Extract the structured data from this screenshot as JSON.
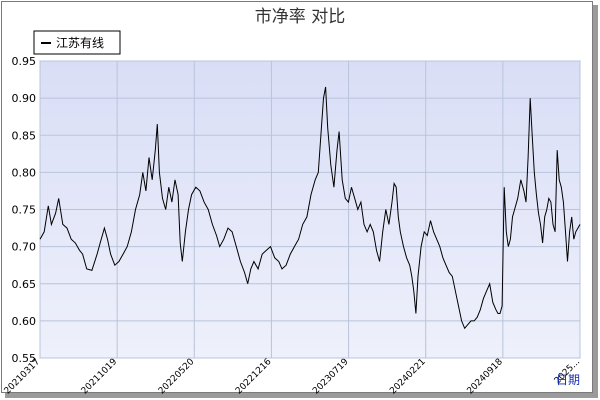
{
  "chart_data": {
    "type": "line",
    "title": "市净率  对比",
    "series": [
      {
        "name": "江苏有线",
        "color": "#000000"
      }
    ],
    "xlabel": "日期",
    "ylim": [
      0.55,
      0.95
    ],
    "yticks": [
      "0.55",
      "0.60",
      "0.65",
      "0.70",
      "0.75",
      "0.80",
      "0.85",
      "0.90",
      "0.95"
    ],
    "xticks": [
      "20210317",
      "20211019",
      "20220520",
      "20221216",
      "20230719",
      "20240221",
      "20240918",
      "2025..."
    ],
    "grid": true,
    "legend": "top-left",
    "background": "#dfe4f8",
    "points": [
      [
        0,
        0.71
      ],
      [
        4,
        0.72
      ],
      [
        8,
        0.755
      ],
      [
        11,
        0.73
      ],
      [
        15,
        0.745
      ],
      [
        18,
        0.765
      ],
      [
        22,
        0.73
      ],
      [
        26,
        0.725
      ],
      [
        30,
        0.71
      ],
      [
        34,
        0.705
      ],
      [
        38,
        0.695
      ],
      [
        41,
        0.69
      ],
      [
        45,
        0.67
      ],
      [
        50,
        0.668
      ],
      [
        55,
        0.69
      ],
      [
        58,
        0.705
      ],
      [
        62,
        0.725
      ],
      [
        65,
        0.71
      ],
      [
        68,
        0.69
      ],
      [
        72,
        0.675
      ],
      [
        76,
        0.68
      ],
      [
        80,
        0.69
      ],
      [
        84,
        0.7
      ],
      [
        88,
        0.72
      ],
      [
        92,
        0.75
      ],
      [
        96,
        0.77
      ],
      [
        99,
        0.8
      ],
      [
        102,
        0.775
      ],
      [
        105,
        0.82
      ],
      [
        108,
        0.79
      ],
      [
        111,
        0.83
      ],
      [
        113,
        0.865
      ],
      [
        115,
        0.8
      ],
      [
        118,
        0.765
      ],
      [
        121,
        0.75
      ],
      [
        124,
        0.78
      ],
      [
        127,
        0.76
      ],
      [
        130,
        0.79
      ],
      [
        133,
        0.77
      ],
      [
        135,
        0.705
      ],
      [
        137,
        0.68
      ],
      [
        140,
        0.72
      ],
      [
        143,
        0.75
      ],
      [
        146,
        0.77
      ],
      [
        150,
        0.78
      ],
      [
        154,
        0.775
      ],
      [
        158,
        0.76
      ],
      [
        162,
        0.75
      ],
      [
        166,
        0.73
      ],
      [
        170,
        0.715
      ],
      [
        173,
        0.7
      ],
      [
        177,
        0.71
      ],
      [
        181,
        0.725
      ],
      [
        185,
        0.72
      ],
      [
        189,
        0.7
      ],
      [
        193,
        0.68
      ],
      [
        197,
        0.665
      ],
      [
        200,
        0.65
      ],
      [
        203,
        0.67
      ],
      [
        206,
        0.68
      ],
      [
        210,
        0.67
      ],
      [
        214,
        0.69
      ],
      [
        218,
        0.695
      ],
      [
        222,
        0.7
      ],
      [
        226,
        0.685
      ],
      [
        230,
        0.68
      ],
      [
        233,
        0.67
      ],
      [
        237,
        0.675
      ],
      [
        241,
        0.69
      ],
      [
        245,
        0.7
      ],
      [
        249,
        0.71
      ],
      [
        253,
        0.73
      ],
      [
        257,
        0.74
      ],
      [
        261,
        0.77
      ],
      [
        265,
        0.79
      ],
      [
        268,
        0.8
      ],
      [
        271,
        0.86
      ],
      [
        273,
        0.9
      ],
      [
        275,
        0.915
      ],
      [
        277,
        0.86
      ],
      [
        280,
        0.81
      ],
      [
        283,
        0.78
      ],
      [
        286,
        0.83
      ],
      [
        288,
        0.855
      ],
      [
        291,
        0.79
      ],
      [
        294,
        0.765
      ],
      [
        297,
        0.76
      ],
      [
        300,
        0.78
      ],
      [
        303,
        0.765
      ],
      [
        306,
        0.75
      ],
      [
        309,
        0.76
      ],
      [
        312,
        0.73
      ],
      [
        315,
        0.72
      ],
      [
        318,
        0.73
      ],
      [
        321,
        0.72
      ],
      [
        324,
        0.695
      ],
      [
        327,
        0.68
      ],
      [
        330,
        0.72
      ],
      [
        333,
        0.75
      ],
      [
        336,
        0.73
      ],
      [
        339,
        0.76
      ],
      [
        341,
        0.785
      ],
      [
        343,
        0.78
      ],
      [
        345,
        0.74
      ],
      [
        347,
        0.72
      ],
      [
        350,
        0.7
      ],
      [
        353,
        0.685
      ],
      [
        356,
        0.675
      ],
      [
        358,
        0.66
      ],
      [
        360,
        0.64
      ],
      [
        362,
        0.61
      ],
      [
        364,
        0.66
      ],
      [
        367,
        0.7
      ],
      [
        370,
        0.72
      ],
      [
        373,
        0.715
      ],
      [
        376,
        0.735
      ],
      [
        379,
        0.72
      ],
      [
        382,
        0.71
      ],
      [
        385,
        0.7
      ],
      [
        388,
        0.685
      ],
      [
        391,
        0.675
      ],
      [
        394,
        0.665
      ],
      [
        397,
        0.66
      ],
      [
        400,
        0.64
      ],
      [
        403,
        0.62
      ],
      [
        406,
        0.6
      ],
      [
        409,
        0.59
      ],
      [
        412,
        0.595
      ],
      [
        415,
        0.6
      ],
      [
        418,
        0.6
      ],
      [
        421,
        0.605
      ],
      [
        424,
        0.615
      ],
      [
        427,
        0.63
      ],
      [
        430,
        0.64
      ],
      [
        433,
        0.65
      ],
      [
        436,
        0.625
      ],
      [
        439,
        0.615
      ],
      [
        441,
        0.61
      ],
      [
        443,
        0.61
      ],
      [
        445,
        0.62
      ],
      [
        447,
        0.78
      ],
      [
        449,
        0.72
      ],
      [
        451,
        0.7
      ],
      [
        453,
        0.71
      ],
      [
        455,
        0.74
      ],
      [
        457,
        0.75
      ],
      [
        460,
        0.765
      ],
      [
        463,
        0.79
      ],
      [
        466,
        0.775
      ],
      [
        468,
        0.76
      ],
      [
        470,
        0.82
      ],
      [
        472,
        0.9
      ],
      [
        474,
        0.85
      ],
      [
        476,
        0.8
      ],
      [
        478,
        0.77
      ],
      [
        480,
        0.745
      ],
      [
        482,
        0.73
      ],
      [
        484,
        0.705
      ],
      [
        486,
        0.74
      ],
      [
        488,
        0.75
      ],
      [
        490,
        0.765
      ],
      [
        492,
        0.76
      ],
      [
        494,
        0.73
      ],
      [
        496,
        0.72
      ],
      [
        498,
        0.83
      ],
      [
        500,
        0.79
      ],
      [
        502,
        0.78
      ],
      [
        504,
        0.76
      ],
      [
        506,
        0.72
      ],
      [
        508,
        0.68
      ],
      [
        510,
        0.72
      ],
      [
        512,
        0.74
      ],
      [
        514,
        0.71
      ],
      [
        516,
        0.72
      ],
      [
        518,
        0.725
      ],
      [
        520,
        0.73
      ]
    ]
  }
}
